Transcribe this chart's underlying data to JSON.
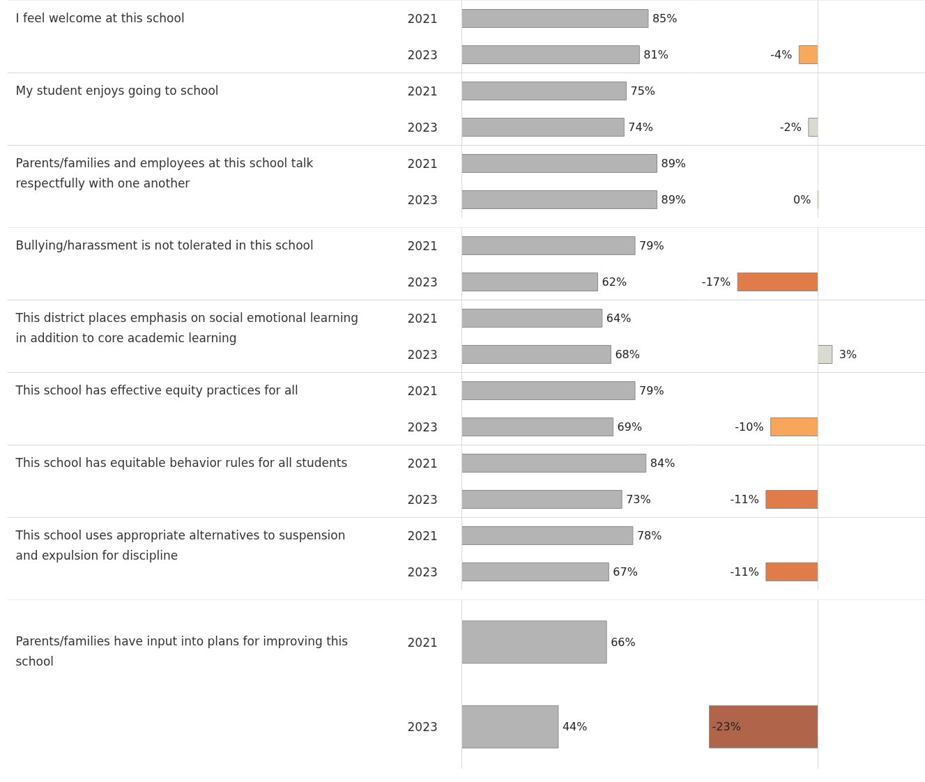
{
  "chart_data": [
    {
      "type": "bar",
      "orientation": "horizontal",
      "categories": [
        "2021",
        "2023",
        "2021",
        "2023",
        "2021",
        "2023"
      ],
      "annotations": [
        "I feel welcome at this school",
        "My student enjoys going to school",
        "Parents/families and employees at this school talk respectfully with one another"
      ],
      "color": "#b4b4b4",
      "values": [
        85,
        81,
        75,
        74,
        89,
        89
      ],
      "value_labels": [
        "85%",
        "81%",
        "75%",
        "74%",
        "89%",
        "89%"
      ]
    },
    {
      "type": "bar",
      "orientation": "horizontal",
      "categories": [
        null,
        null,
        null,
        null,
        null,
        null
      ],
      "colors": [
        null,
        "#f8a95c",
        null,
        "#dcdad0",
        null,
        "#dcdad0"
      ],
      "values": [
        null,
        -4,
        null,
        -2,
        null,
        0
      ],
      "value_labels": [
        null,
        "-4%",
        null,
        "-2%",
        null,
        "0%"
      ]
    },
    {
      "type": "bar",
      "orientation": "horizontal",
      "categories": [
        "2021",
        "2023",
        "2021",
        "2023",
        "2021",
        "2023",
        "2021",
        "2023",
        "2021",
        "2023"
      ],
      "annotations": [
        "Bullying/harassment is not tolerated in this school",
        "This district places emphasis on social emotional learning in addition to core academic learning",
        "This school has effective equity practices for all",
        "This school has equitable behavior rules for all students",
        "This school uses appropriate alternatives to suspension and expulsion for discipline"
      ],
      "color": "#b4b4b4",
      "values": [
        79,
        62,
        64,
        68,
        79,
        69,
        84,
        73,
        78,
        67
      ],
      "value_labels": [
        "79%",
        "62%",
        "64%",
        "68%",
        "79%",
        "69%",
        "84%",
        "73%",
        "78%",
        "67%"
      ]
    },
    {
      "type": "bar",
      "orientation": "horizontal",
      "categories": [
        null,
        null,
        null,
        null,
        null,
        null,
        null,
        null,
        null,
        null
      ],
      "colors": [
        null,
        "#e07b4a",
        null,
        "#dcdad0",
        null,
        "#f9a65a",
        null,
        "#e07b4a",
        null,
        "#e07b4a"
      ],
      "values": [
        null,
        -17,
        null,
        3,
        null,
        -10,
        null,
        -11,
        null,
        -11
      ],
      "value_labels": [
        null,
        "-17%",
        null,
        "3%",
        null,
        "-10%",
        null,
        "-11%",
        null,
        "-11%"
      ]
    },
    {
      "type": "bar",
      "orientation": "horizontal",
      "categories": [
        "2021",
        "2023"
      ],
      "annotations": [
        "Parents/families have input into plans for improving this school"
      ],
      "color": "#b4b4b4",
      "values": [
        66,
        44
      ],
      "value_labels": [
        "66%",
        "44%"
      ]
    },
    {
      "type": "bar",
      "orientation": "horizontal",
      "categories": [
        null,
        null
      ],
      "colors": [
        null,
        "#b0654a"
      ],
      "values": [
        null,
        -23
      ],
      "value_labels": [
        null,
        "-23%"
      ]
    }
  ]
}
